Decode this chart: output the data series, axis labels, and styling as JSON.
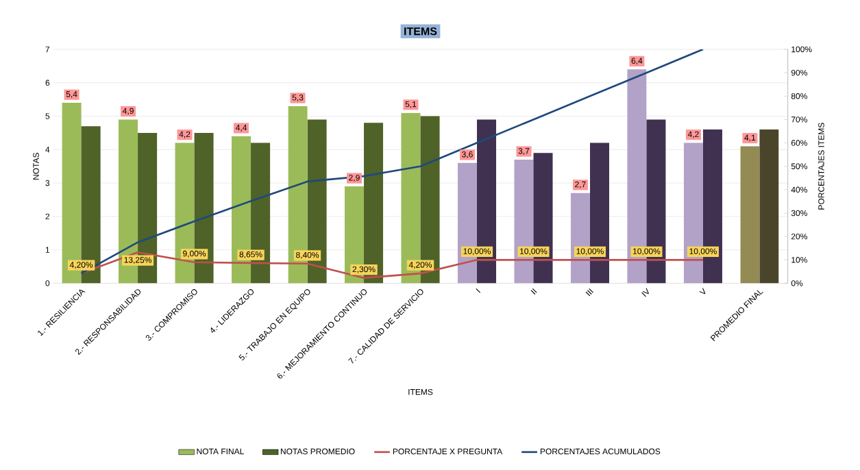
{
  "chart_data": {
    "type": "bar",
    "title": "ITEMS",
    "xlabel": "ITEMS",
    "ylabel": "NOTAS",
    "y2label": "PORCENTAJES  ITEMS",
    "categories": [
      "1.- RESILIENCIA",
      "2.- RESPONSABILIDAD",
      "3.- COMPROMISO",
      "4.- LIDERAZGO",
      "5.- TRABAJO EN EQUIPO",
      "6.- MEJORAMIENTO CONTINUO",
      "7.- CALIDAD DE SERVICIO",
      "I",
      "II",
      "III",
      "IV",
      "V",
      "PROMEDIO FINAL"
    ],
    "series": [
      {
        "name": "NOTA FINAL",
        "color": "#9bbb59",
        "colors": [
          "#9bbb59",
          "#9bbb59",
          "#9bbb59",
          "#9bbb59",
          "#9bbb59",
          "#9bbb59",
          "#9bbb59",
          "#b3a2c7",
          "#b3a2c7",
          "#b3a2c7",
          "#b3a2c7",
          "#b3a2c7",
          "#948a54"
        ],
        "values": [
          5.4,
          4.9,
          4.2,
          4.4,
          5.3,
          2.9,
          5.1,
          3.6,
          3.7,
          2.7,
          6.4,
          4.2,
          4.1
        ],
        "value_labels": [
          "5,4",
          "4,9",
          "4,2",
          "4,4",
          "5,3",
          "2,9",
          "5,1",
          "3,6",
          "3,7",
          "2,7",
          "6,4",
          "4,2",
          "4,1"
        ]
      },
      {
        "name": "NOTAS PROMEDIO",
        "color": "#4f6228",
        "colors": [
          "#4f6228",
          "#4f6228",
          "#4f6228",
          "#4f6228",
          "#4f6228",
          "#4f6228",
          "#4f6228",
          "#403151",
          "#403151",
          "#403151",
          "#403151",
          "#403151",
          "#4a452a"
        ],
        "values": [
          4.7,
          4.5,
          4.5,
          4.2,
          4.9,
          4.8,
          5.0,
          4.9,
          3.9,
          4.2,
          4.9,
          4.6,
          4.6
        ]
      },
      {
        "name": "PORCENTAJE X PREGUNTA",
        "type": "line",
        "axis": "y2",
        "color": "#c0504d",
        "values": [
          4.2,
          13.25,
          9.0,
          8.65,
          8.4,
          2.3,
          4.2,
          10,
          10,
          10,
          10,
          10,
          null
        ],
        "value_labels": [
          "4,20%",
          "13,25%",
          "9,00%",
          "8,65%",
          "8,40%",
          "2,30%",
          "4,20%",
          "10,00%",
          "10,00%",
          "10,00%",
          "10,00%",
          "10,00%",
          null
        ]
      },
      {
        "name": "PORCENTAJES ACUMULADOS",
        "type": "line",
        "axis": "y2",
        "color": "#1f497d",
        "values": [
          4.2,
          17.5,
          26.5,
          35.1,
          43.5,
          45.8,
          50,
          60,
          70,
          80,
          90,
          100,
          null
        ]
      }
    ],
    "ylim": [
      0,
      7
    ],
    "yticks": [
      0,
      1,
      2,
      3,
      4,
      5,
      6,
      7
    ],
    "y2lim": [
      0,
      100
    ],
    "y2ticks": [
      {
        "value": 0,
        "label": "0%"
      },
      {
        "value": 10,
        "label": "10%"
      },
      {
        "value": 20,
        "label": "20%"
      },
      {
        "value": 30,
        "label": "30%"
      },
      {
        "value": 40,
        "label": "40%"
      },
      {
        "value": 50,
        "label": "50%"
      },
      {
        "value": 60,
        "label": "60%"
      },
      {
        "value": 70,
        "label": "70%"
      },
      {
        "value": 80,
        "label": "80%"
      },
      {
        "value": 90,
        "label": "90%"
      },
      {
        "value": 100,
        "label": "100%"
      }
    ],
    "grid": "y",
    "legend": "bottom"
  }
}
